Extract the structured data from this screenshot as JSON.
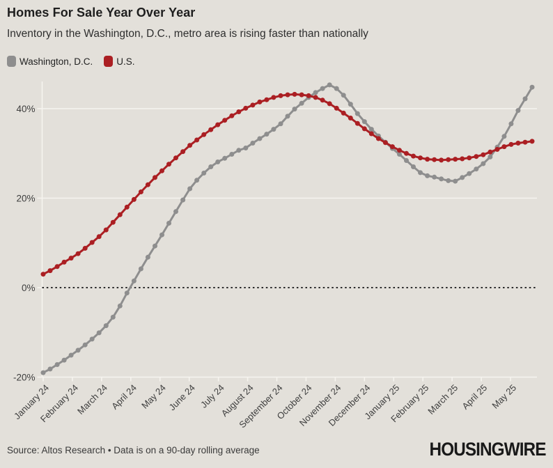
{
  "header": {
    "title": "Homes For Sale Year Over Year",
    "subtitle": "Inventory in the Washington, D.C., metro area is rising faster than nationally"
  },
  "legend": {
    "items": [
      {
        "label": "Washington, D.C.",
        "color": "#8e8e8e"
      },
      {
        "label": "U.S.",
        "color": "#ab1f23"
      }
    ]
  },
  "footer": {
    "source": "Source: Altos Research • Data is on a 90-day rolling average",
    "brand": "HOUSINGWIRE"
  },
  "colors": {
    "background": "#e3e0da",
    "gridline": "#f6f4ef",
    "zero_line": "#2b2b2b",
    "tick_text": "#3e3e3e",
    "washington_series": "#8e8e8e",
    "us_series": "#ab1f23"
  },
  "chart_data": {
    "type": "line",
    "title": "Homes For Sale Year Over Year",
    "subtitle": "Inventory in the Washington, D.C., metro area is rising faster than nationally",
    "x_unit": "weekly observations, 90-day rolling average, January 2024 - May 2025",
    "x_tick_labels": [
      "January 24",
      "February 24",
      "March 24",
      "April 24",
      "May 24",
      "June 24",
      "July 24",
      "August 24",
      "September 24",
      "October 24",
      "November 24",
      "December 24",
      "January 25",
      "February 25",
      "March 25",
      "April 25",
      "May 25"
    ],
    "y_tick_values": [
      40,
      20,
      0,
      -20
    ],
    "y_tick_labels": [
      "40%",
      "20%",
      "0%",
      "-20%"
    ],
    "ylim": [
      -20,
      46
    ],
    "y_gridlines": [
      40,
      20
    ],
    "zero_line_dotted": true,
    "legend_position": "top-left",
    "series": [
      {
        "name": "Washington, D.C.",
        "color": "#8e8e8e",
        "values": [
          -19.0,
          -18.2,
          -17.2,
          -16.2,
          -15.1,
          -14.0,
          -12.8,
          -11.5,
          -10.1,
          -8.5,
          -6.6,
          -4.1,
          -1.2,
          1.5,
          4.2,
          6.8,
          9.3,
          11.8,
          14.4,
          17.0,
          19.6,
          22.1,
          24.0,
          25.6,
          27.0,
          28.1,
          28.9,
          29.8,
          30.7,
          31.2,
          32.3,
          33.3,
          34.3,
          35.4,
          36.6,
          38.3,
          39.9,
          41.2,
          42.5,
          43.6,
          44.5,
          45.3,
          44.5,
          43.0,
          41.0,
          38.9,
          37.1,
          35.4,
          33.9,
          32.5,
          31.1,
          29.8,
          28.4,
          27.0,
          25.7,
          25.0,
          24.7,
          24.3,
          23.9,
          23.8,
          24.6,
          25.5,
          26.5,
          27.7,
          29.2,
          31.4,
          33.8,
          36.6,
          39.6,
          42.2,
          44.8
        ]
      },
      {
        "name": "U.S.",
        "color": "#ab1f23",
        "values": [
          3.0,
          3.8,
          4.7,
          5.7,
          6.6,
          7.6,
          8.8,
          10.1,
          11.4,
          12.9,
          14.6,
          16.3,
          18.0,
          19.7,
          21.4,
          23.0,
          24.6,
          26.1,
          27.6,
          29.0,
          30.4,
          31.8,
          33.0,
          34.2,
          35.3,
          36.4,
          37.4,
          38.4,
          39.3,
          40.1,
          40.8,
          41.5,
          42.0,
          42.5,
          42.9,
          43.1,
          43.2,
          43.1,
          42.9,
          42.5,
          41.9,
          41.1,
          40.1,
          39.0,
          37.9,
          36.7,
          35.5,
          34.4,
          33.3,
          32.4,
          31.5,
          30.7,
          30.0,
          29.4,
          29.0,
          28.7,
          28.6,
          28.5,
          28.6,
          28.7,
          28.8,
          29.0,
          29.3,
          29.7,
          30.3,
          30.9,
          31.5,
          32.0,
          32.3,
          32.5,
          32.7
        ]
      }
    ]
  }
}
